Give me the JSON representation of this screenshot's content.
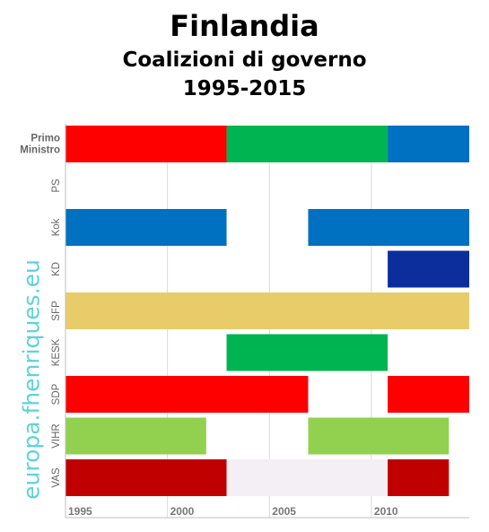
{
  "title": "Finlandia",
  "subtitle": "Coalizioni di governo",
  "period": "1995-2015",
  "watermark": "europa.fhenriques.eu",
  "chart_data": {
    "type": "bar",
    "orientation": "horizontal-timeline",
    "xlim": [
      1995,
      2014.8
    ],
    "x_ticks": [
      1995,
      2000,
      2005,
      2010
    ],
    "x_tick_labels": [
      "1995",
      "2000",
      "2005",
      "2010"
    ],
    "rows": [
      {
        "label": "Primo Ministro",
        "segments": [
          {
            "start": 1995,
            "end": 2002.9,
            "color": "#ff0000"
          },
          {
            "start": 2002.9,
            "end": 2010.8,
            "color": "#00b451"
          },
          {
            "start": 2010.8,
            "end": 2014.8,
            "color": "#0070c0"
          }
        ]
      },
      {
        "label": "PS",
        "segments": []
      },
      {
        "label": "Kok",
        "segments": [
          {
            "start": 1995,
            "end": 2002.9,
            "color": "#0070c0"
          },
          {
            "start": 2006.9,
            "end": 2014.8,
            "color": "#0070c0"
          }
        ]
      },
      {
        "label": "KD",
        "segments": [
          {
            "start": 2010.8,
            "end": 2014.8,
            "color": "#0c2d9c"
          }
        ]
      },
      {
        "label": "SFP",
        "segments": [
          {
            "start": 1995,
            "end": 2014.8,
            "color": "#e8cc6a"
          }
        ]
      },
      {
        "label": "KESK",
        "segments": [
          {
            "start": 2002.9,
            "end": 2010.8,
            "color": "#00b451"
          }
        ]
      },
      {
        "label": "SDP",
        "segments": [
          {
            "start": 1995,
            "end": 2006.9,
            "color": "#ff0000"
          },
          {
            "start": 2010.8,
            "end": 2014.8,
            "color": "#ff0000"
          }
        ]
      },
      {
        "label": "VIHR",
        "segments": [
          {
            "start": 1995,
            "end": 2001.9,
            "color": "#92d050"
          },
          {
            "start": 2006.9,
            "end": 2013.8,
            "color": "#92d050"
          }
        ]
      },
      {
        "label": "VAS",
        "segments": [
          {
            "start": 1995,
            "end": 2002.9,
            "color": "#c00000"
          },
          {
            "start": 2002.9,
            "end": 2010.8,
            "color": "#f3eff4"
          },
          {
            "start": 2010.8,
            "end": 2013.8,
            "color": "#c00000"
          }
        ]
      }
    ]
  }
}
